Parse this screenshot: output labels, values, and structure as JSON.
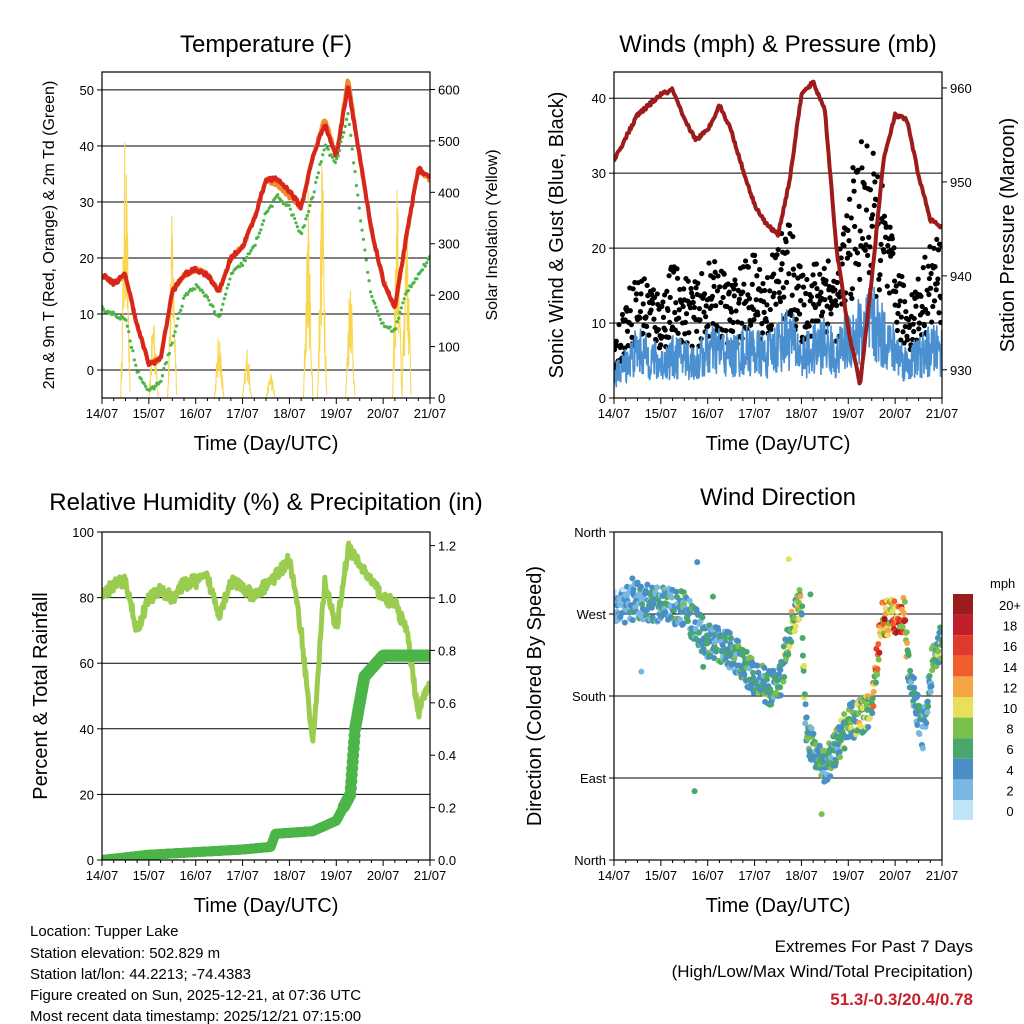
{
  "chart_data": [
    {
      "type": "line",
      "title": "Temperature (F)",
      "xlabel": "Time (Day/UTC)",
      "ylabel": "2m & 9m T (Red, Orange) & 2m Td (Green)",
      "ylabel_right": "Solar Insolation (Yellow)",
      "x_ticks": [
        "14/07",
        "15/07",
        "16/07",
        "17/07",
        "18/07",
        "19/07",
        "20/07",
        "21/07"
      ],
      "y_ticks": [
        "0",
        "10",
        "20",
        "30",
        "40",
        "50"
      ],
      "y_ticks_right": [
        "0",
        "100",
        "200",
        "300",
        "400",
        "500",
        "600"
      ],
      "ylim": [
        -5,
        53.2
      ],
      "ylim_right": [
        0,
        634
      ],
      "grid": true,
      "t_days": [
        0,
        0.25,
        0.5,
        0.75,
        1,
        1.25,
        1.5,
        1.75,
        2,
        2.25,
        2.5,
        2.75,
        3,
        3.25,
        3.5,
        3.75,
        4,
        4.25,
        4.5,
        4.75,
        5,
        5.25,
        5.5,
        5.75,
        6,
        6.25,
        6.5,
        6.75,
        7
      ],
      "series": [
        {
          "name": "2m T",
          "color": "#d7261e",
          "values": [
            17,
            15.5,
            17,
            8,
            1,
            2,
            14,
            17,
            18,
            17,
            14,
            20,
            22,
            27,
            34,
            34,
            32,
            29,
            38,
            44,
            38,
            51,
            38,
            25,
            16,
            11,
            24,
            36,
            34
          ]
        },
        {
          "name": "9m T",
          "color": "#f28c28",
          "values": [
            17,
            15.5,
            17,
            8,
            1,
            2,
            14,
            17,
            18,
            17,
            14,
            20,
            22,
            27,
            34,
            33,
            31,
            29,
            38,
            45,
            38,
            52,
            38,
            25,
            16,
            11,
            24,
            36,
            34
          ]
        },
        {
          "name": "2m Td",
          "color": "#4cb548",
          "values": [
            11,
            10,
            9,
            0,
            -4,
            -2,
            5,
            13,
            15,
            13,
            9,
            17,
            19,
            22,
            28,
            31,
            29,
            24,
            31,
            40,
            37,
            46,
            28,
            13,
            8,
            7,
            14,
            17,
            20
          ]
        },
        {
          "name": "Solar Insolation",
          "color": "#f8d64e",
          "axis": "right",
          "peaks": [
            {
              "t": 0.5,
              "v": 600
            },
            {
              "t": 1.1,
              "v": 200
            },
            {
              "t": 1.5,
              "v": 400
            },
            {
              "t": 2.5,
              "v": 150
            },
            {
              "t": 3.1,
              "v": 110
            },
            {
              "t": 3.6,
              "v": 60
            },
            {
              "t": 4.4,
              "v": 420
            },
            {
              "t": 4.7,
              "v": 520
            },
            {
              "t": 5.3,
              "v": 300
            },
            {
              "t": 6.3,
              "v": 450
            },
            {
              "t": 6.5,
              "v": 440
            }
          ]
        }
      ]
    },
    {
      "type": "line",
      "title": "Winds (mph) & Pressure (mb)",
      "xlabel": "Time (Day/UTC)",
      "ylabel": "Sonic Wind & Gust (Blue, Black)",
      "ylabel_right": "Station Pressure (Maroon)",
      "x_ticks": [
        "14/07",
        "15/07",
        "16/07",
        "17/07",
        "18/07",
        "19/07",
        "20/07",
        "21/07"
      ],
      "y_ticks": [
        "0",
        "10",
        "20",
        "30",
        "40"
      ],
      "y_ticks_right": [
        "930",
        "940",
        "950",
        "960"
      ],
      "ylim": [
        0,
        43.5
      ],
      "ylim_right": [
        927.0,
        961.7
      ],
      "grid": true,
      "t_days": [
        0,
        0.25,
        0.5,
        0.75,
        1,
        1.25,
        1.5,
        1.75,
        2,
        2.25,
        2.5,
        2.75,
        3,
        3.25,
        3.5,
        3.75,
        4,
        4.25,
        4.5,
        4.75,
        5,
        5.25,
        5.5,
        5.75,
        6,
        6.25,
        6.5,
        6.75,
        7
      ],
      "series": [
        {
          "name": "Sonic Wind",
          "color": "#4a90d0",
          "values": [
            3,
            5,
            7,
            6,
            5,
            6,
            6,
            5,
            7,
            7,
            6,
            7,
            7,
            6,
            8,
            9,
            6,
            7,
            8,
            6,
            9,
            10,
            11,
            9,
            7,
            5,
            6,
            7,
            7
          ]
        },
        {
          "name": "Gust",
          "color": "#000000",
          "values": [
            5,
            10,
            12,
            12,
            10,
            13,
            12,
            11,
            13,
            13,
            11,
            13,
            14,
            12,
            16,
            17,
            12,
            13,
            15,
            12,
            20,
            25,
            24,
            20,
            14,
            10,
            12,
            15,
            16
          ]
        },
        {
          "name": "Station Pressure",
          "color": "#9c1c1c",
          "axis": "right",
          "t_days": [
            0,
            0.5,
            1,
            1.25,
            1.5,
            1.75,
            2,
            2.25,
            2.5,
            2.75,
            3,
            3.25,
            3.5,
            3.75,
            4,
            4.25,
            4.5,
            4.75,
            5,
            5.25,
            5.5,
            5.75,
            6,
            6.25,
            6.5,
            6.75,
            7
          ],
          "values": [
            952.3,
            957.1,
            959.3,
            959.8,
            956.6,
            954.5,
            955.5,
            958.2,
            955.5,
            951.3,
            947.6,
            945.5,
            944.4,
            950.2,
            959.3,
            960.6,
            957.7,
            942.8,
            934.3,
            928.4,
            939.6,
            952.3,
            957.1,
            956.6,
            950.7,
            946.0,
            945.1
          ]
        }
      ]
    },
    {
      "type": "line",
      "title": "Relative Humidity (%) & Precipitation (in)",
      "xlabel": "Time (Day/UTC)",
      "ylabel": "Percent & Total Rainfall",
      "x_ticks": [
        "14/07",
        "15/07",
        "16/07",
        "17/07",
        "18/07",
        "19/07",
        "20/07",
        "21/07"
      ],
      "y_ticks": [
        "0",
        "20",
        "40",
        "60",
        "80",
        "100"
      ],
      "y_ticks_right": [
        "0.0",
        "0.2",
        "0.4",
        "0.6",
        "0.8",
        "1.0",
        "1.2"
      ],
      "ylim": [
        0,
        100
      ],
      "ylim_right": [
        0,
        1.252
      ],
      "grid": true,
      "series": [
        {
          "name": "Relative Humidity",
          "color": "#9acd4f",
          "t_days": [
            0,
            0.25,
            0.5,
            0.75,
            1,
            1.25,
            1.5,
            1.75,
            2,
            2.25,
            2.5,
            2.75,
            3,
            3.25,
            3.5,
            3.75,
            4,
            4.25,
            4.5,
            4.75,
            5,
            5.25,
            5.5,
            5.75,
            6,
            6.25,
            6.5,
            6.75,
            7
          ],
          "values": [
            80,
            84,
            85,
            70,
            80,
            82,
            80,
            84,
            85,
            86,
            75,
            85,
            83,
            80,
            84,
            87,
            92,
            70,
            35,
            85,
            70,
            95,
            90,
            85,
            80,
            78,
            70,
            45,
            55
          ]
        },
        {
          "name": "Total Precipitation",
          "color": "#4cb548",
          "axis": "right",
          "t_days": [
            0,
            0.5,
            1,
            2,
            3,
            3.6,
            3.7,
            4.5,
            5,
            5.3,
            5.4,
            5.6,
            6,
            7
          ],
          "values": [
            0,
            0.01,
            0.02,
            0.03,
            0.04,
            0.05,
            0.1,
            0.11,
            0.15,
            0.25,
            0.5,
            0.7,
            0.78,
            0.78
          ]
        }
      ]
    },
    {
      "type": "scatter",
      "title": "Wind Direction",
      "xlabel": "Time (Day/UTC)",
      "ylabel": "Direction (Colored By Speed)",
      "x_ticks": [
        "14/07",
        "15/07",
        "16/07",
        "17/07",
        "18/07",
        "19/07",
        "20/07",
        "21/07"
      ],
      "y_ticks": [
        "North",
        "East",
        "South",
        "West",
        "North"
      ],
      "ylim": [
        0,
        360
      ],
      "grid": true,
      "t_days": [
        0,
        0.5,
        1,
        1.5,
        2,
        2.5,
        3,
        3.5,
        3.8,
        4,
        4.1,
        4.5,
        5,
        5.5,
        5.7,
        6.2,
        6.3,
        6.6,
        6.8,
        7
      ],
      "direction_deg": [
        275,
        285,
        280,
        275,
        240,
        230,
        200,
        185,
        260,
        285,
        140,
        100,
        150,
        165,
        265,
        270,
        200,
        140,
        220,
        240
      ],
      "speed_mph": [
        3,
        5,
        6,
        6,
        6,
        6,
        7,
        6,
        9,
        10,
        7,
        6,
        8,
        10,
        16,
        15,
        6,
        5,
        7,
        8
      ],
      "colorbar": {
        "title": "mph",
        "labels": [
          "20+",
          "18",
          "16",
          "14",
          "12",
          "10",
          "8",
          "6",
          "4",
          "2",
          "0"
        ],
        "colors": [
          "#9b1c1c",
          "#c0202a",
          "#e03a2c",
          "#f05f2b",
          "#f6a545",
          "#e6e05a",
          "#7bc04c",
          "#48a86c",
          "#4a8ec8",
          "#7ab8e4",
          "#bfe3f7"
        ]
      }
    }
  ],
  "footer": {
    "location": "Location: Tupper Lake",
    "elevation": "Station elevation: 502.829 m",
    "latlon": "Station lat/lon: 44.2213; -74.4383",
    "created": "Figure created on Sun, 2025-12-21, at 07:36 UTC",
    "recent": "Most recent data timestamp: 2025/12/21 07:15:00"
  },
  "extremes": {
    "title": "Extremes For Past 7 Days",
    "subtitle": "(High/Low/Max Wind/Total Precipitation)",
    "values": "51.3/-0.3/20.4/0.78"
  }
}
